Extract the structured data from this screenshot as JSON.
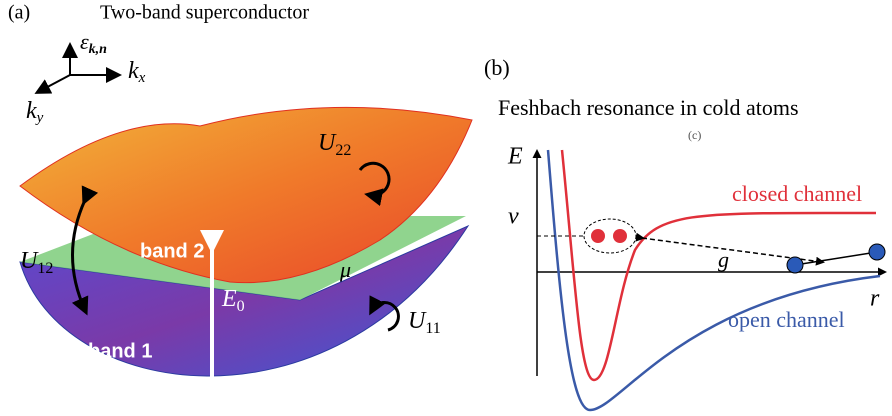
{
  "panel_a": {
    "label": "(a)",
    "title": "Two-band superconductor",
    "axes": {
      "energy": "ε",
      "energy_sub": "k,n",
      "kx": "k",
      "kx_sub": "x",
      "ky": "k",
      "ky_sub": "y"
    },
    "band2": "band 2",
    "band1": "band 1",
    "mu": "μ",
    "u22": "U",
    "u22_sub": "22",
    "u12": "U",
    "u12_sub": "12",
    "u11": "U",
    "u11_sub": "11",
    "e0": "E",
    "e0_sub": "0"
  },
  "panel_b": {
    "label": "(b)",
    "title": "Feshbach resonance in cold atoms",
    "hidden_label": "(c)",
    "y_axis": "E",
    "nu": "ν",
    "x_axis": "r",
    "closed": "closed channel",
    "open": "open channel",
    "coupling": "g"
  }
}
